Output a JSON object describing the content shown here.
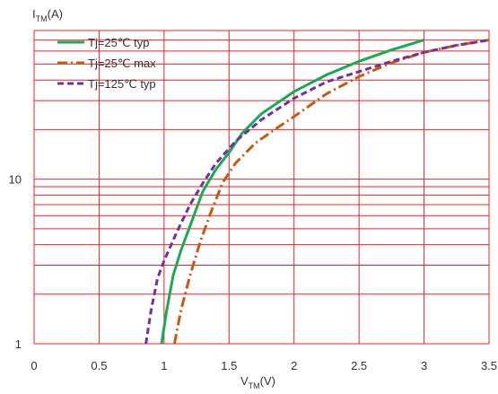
{
  "chart_data": {
    "type": "line",
    "x_axis": {
      "label_main": "V",
      "label_sub": "TM",
      "label_unit": "(V)",
      "range": [
        0,
        3.5
      ],
      "ticks": [
        0,
        0.5,
        1,
        1.5,
        2,
        2.5,
        3,
        3.5
      ],
      "tick_labels": [
        "0",
        "0.5",
        "1",
        "1.5",
        "2",
        "2.5",
        "3",
        "3.5"
      ]
    },
    "y_axis": {
      "label_main": "I",
      "label_sub": "TM",
      "label_unit": "(A)",
      "scale": "log",
      "range": [
        1,
        80
      ],
      "tick_values": [
        1,
        10
      ],
      "tick_labels": [
        "1",
        "10"
      ],
      "minor_gridlines": [
        2,
        3,
        4,
        5,
        6,
        7,
        8,
        9,
        20,
        30,
        40,
        50,
        60,
        70
      ]
    },
    "grid": true,
    "legend_position": "top-left",
    "series": [
      {
        "name": "Tj=25℃ typ",
        "color": "#1aaa55",
        "dash": "solid",
        "points": [
          [
            0.98,
            1
          ],
          [
            1.02,
            1.6
          ],
          [
            1.07,
            2.6
          ],
          [
            1.13,
            3.7
          ],
          [
            1.2,
            5.2
          ],
          [
            1.3,
            8.5
          ],
          [
            1.4,
            11.5
          ],
          [
            1.5,
            14.5
          ],
          [
            1.6,
            19
          ],
          [
            1.75,
            25
          ],
          [
            2.0,
            34
          ],
          [
            2.25,
            43
          ],
          [
            2.5,
            52
          ],
          [
            2.75,
            61
          ],
          [
            3.0,
            70
          ]
        ]
      },
      {
        "name": "Tj=25℃ max",
        "color": "#c55a11",
        "dash": "dashdot",
        "points": [
          [
            1.08,
            1
          ],
          [
            1.13,
            1.6
          ],
          [
            1.2,
            2.6
          ],
          [
            1.28,
            4.2
          ],
          [
            1.35,
            6
          ],
          [
            1.45,
            9.5
          ],
          [
            1.55,
            12.5
          ],
          [
            1.7,
            16.5
          ],
          [
            1.85,
            20
          ],
          [
            2.0,
            24
          ],
          [
            2.25,
            33
          ],
          [
            2.5,
            42
          ],
          [
            2.75,
            51
          ],
          [
            3.0,
            59
          ],
          [
            3.25,
            65
          ],
          [
            3.5,
            70
          ]
        ]
      },
      {
        "name": "Tj=125℃ typ",
        "color": "#7030a0",
        "dash": "dash",
        "points": [
          [
            0.86,
            1
          ],
          [
            0.9,
            1.6
          ],
          [
            0.95,
            2.5
          ],
          [
            1.0,
            3.2
          ],
          [
            1.1,
            4.8
          ],
          [
            1.2,
            7
          ],
          [
            1.3,
            9.5
          ],
          [
            1.4,
            12.5
          ],
          [
            1.55,
            17
          ],
          [
            1.75,
            23
          ],
          [
            2.0,
            31
          ],
          [
            2.25,
            39
          ],
          [
            2.5,
            45
          ],
          [
            2.75,
            52
          ],
          [
            3.0,
            59
          ],
          [
            3.25,
            65
          ],
          [
            3.5,
            70
          ]
        ]
      }
    ]
  }
}
